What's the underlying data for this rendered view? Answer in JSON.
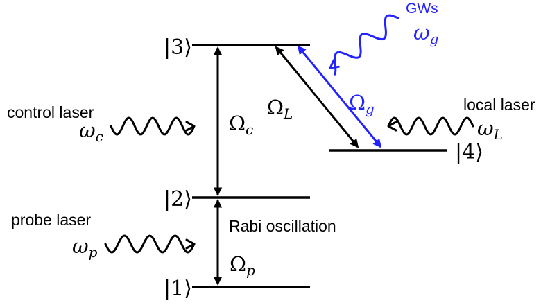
{
  "levels": {
    "l1": "|1⟩",
    "l2": "|2⟩",
    "l3": "|3⟩",
    "l4": "|4⟩"
  },
  "labels": {
    "gws": "GWs",
    "control_laser": "control laser",
    "local_laser": "local laser",
    "probe_laser": "probe laser",
    "rabi_oscillation": "Rabi oscillation"
  },
  "symbols": {
    "omega_g": {
      "base": "ω",
      "sub": "g"
    },
    "omega_c": {
      "base": "ω",
      "sub": "c"
    },
    "omega_L": {
      "base": "ω",
      "sub": "L"
    },
    "omega_p": {
      "base": "ω",
      "sub": "p"
    },
    "Omega_c": {
      "base": "Ω",
      "sub": "c"
    },
    "Omega_L": {
      "base": "Ω",
      "sub": "L"
    },
    "Omega_g": {
      "base": "Ω",
      "sub": "g"
    },
    "Omega_p": {
      "base": "Ω",
      "sub": "p"
    }
  },
  "colors": {
    "ink": "#000000",
    "gw_blue": "#2323ff"
  }
}
